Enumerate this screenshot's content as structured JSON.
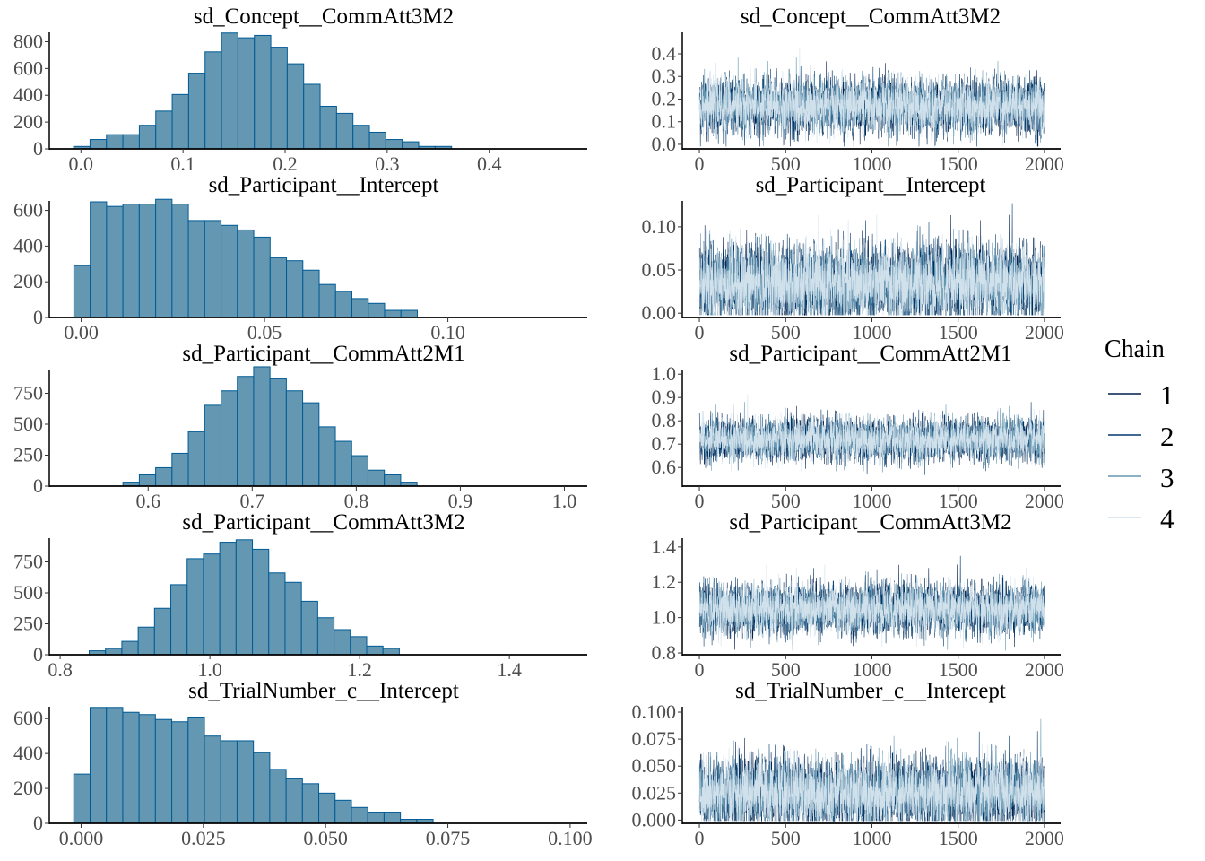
{
  "legend": {
    "title": "Chain",
    "items": [
      {
        "label": "1",
        "color": "#011f4b"
      },
      {
        "label": "2",
        "color": "#03396c"
      },
      {
        "label": "3",
        "color": "#6497b1"
      },
      {
        "label": "4",
        "color": "#d1e1ec"
      }
    ]
  },
  "colors": {
    "hist_fill": "#6497b1",
    "hist_border": "#005b96",
    "axis": "#000000",
    "tick_text": "#4d4d4d"
  },
  "chart_data": [
    {
      "type": "bar",
      "title": "sd_Concept__CommAtt3M2",
      "x_ticks": [
        "0.0",
        "0.1",
        "0.2",
        "0.3",
        "0.4"
      ],
      "x_tick_values": [
        0,
        0.1,
        0.2,
        0.3,
        0.4
      ],
      "y_ticks": [
        "0",
        "200",
        "400",
        "600",
        "800"
      ],
      "y_tick_values": [
        0,
        200,
        400,
        600,
        800
      ],
      "xlim": [
        -0.031,
        0.496
      ],
      "ylim": [
        0,
        870
      ],
      "bin_start": -0.0072,
      "bin_width": 0.0161,
      "counts": [
        18,
        70,
        106,
        106,
        176,
        282,
        406,
        565,
        724,
        865,
        829,
        847,
        759,
        635,
        482,
        318,
        265,
        176,
        124,
        70,
        53,
        18,
        18
      ]
    },
    {
      "type": "line",
      "title": "sd_Concept__CommAtt3M2",
      "x_ticks": [
        "0",
        "500",
        "1000",
        "1500",
        "2000"
      ],
      "x_tick_values": [
        0,
        500,
        1000,
        1500,
        2000
      ],
      "y_ticks": [
        "0.0",
        "0.1",
        "0.2",
        "0.3",
        "0.4"
      ],
      "y_tick_values": [
        0,
        0.1,
        0.2,
        0.3,
        0.4
      ],
      "xlim": [
        -99,
        2094
      ],
      "ylim": [
        -0.02,
        0.495
      ],
      "chains": 4,
      "iterations": 2000,
      "center": 0.17,
      "spread": 0.06
    },
    {
      "type": "bar",
      "title": "sd_Participant__Intercept",
      "x_ticks": [
        "0.00",
        "0.05",
        "0.10"
      ],
      "x_tick_values": [
        0,
        0.05,
        0.1
      ],
      "y_ticks": [
        "0",
        "200",
        "400",
        "600"
      ],
      "y_tick_values": [
        0,
        200,
        400,
        600
      ],
      "xlim": [
        -0.0087,
        0.138
      ],
      "ylim": [
        0,
        653
      ],
      "bin_start": -0.002,
      "bin_width": 0.00446,
      "counts": [
        291,
        648,
        622,
        635,
        635,
        662,
        635,
        543,
        543,
        516,
        490,
        450,
        335,
        318,
        265,
        185,
        146,
        106,
        79,
        40,
        40
      ]
    },
    {
      "type": "line",
      "title": "sd_Participant__Intercept",
      "x_ticks": [
        "0",
        "500",
        "1000",
        "1500",
        "2000"
      ],
      "x_tick_values": [
        0,
        500,
        1000,
        1500,
        2000
      ],
      "y_ticks": [
        "0.00",
        "0.05",
        "0.10"
      ],
      "y_tick_values": [
        0,
        0.05,
        0.1
      ],
      "xlim": [
        -99,
        2094
      ],
      "ylim": [
        -0.005,
        0.13
      ],
      "chains": 4,
      "iterations": 2000,
      "center": 0.035,
      "spread": 0.022
    },
    {
      "type": "bar",
      "title": "sd_Participant__CommAtt2M1",
      "x_ticks": [
        "0.6",
        "0.7",
        "0.8",
        "0.9",
        "1.0"
      ],
      "x_tick_values": [
        0.6,
        0.7,
        0.8,
        0.9,
        1.0
      ],
      "y_ticks": [
        "0",
        "250",
        "500",
        "750"
      ],
      "y_tick_values": [
        0,
        250,
        500,
        750
      ],
      "xlim": [
        0.505,
        1.022
      ],
      "ylim": [
        0,
        942
      ],
      "bin_start": 0.5758,
      "bin_width": 0.0157,
      "counts": [
        32,
        91,
        149,
        265,
        440,
        653,
        770,
        886,
        964,
        867,
        770,
        673,
        479,
        362,
        246,
        129,
        91,
        32
      ]
    },
    {
      "type": "line",
      "title": "sd_Participant__CommAtt2M1",
      "x_ticks": [
        "0",
        "500",
        "1000",
        "1500",
        "2000"
      ],
      "x_tick_values": [
        0,
        500,
        1000,
        1500,
        2000
      ],
      "y_ticks": [
        "0.6",
        "0.7",
        "0.8",
        "0.9",
        "1.0"
      ],
      "y_tick_values": [
        0.6,
        0.7,
        0.8,
        0.9,
        1.0
      ],
      "xlim": [
        -99,
        2094
      ],
      "ylim": [
        0.52,
        1.02
      ],
      "chains": 4,
      "iterations": 2000,
      "center": 0.72,
      "spread": 0.045
    },
    {
      "type": "bar",
      "title": "sd_Participant__CommAtt3M2",
      "x_ticks": [
        "0.8",
        "1.0",
        "1.2",
        "1.4"
      ],
      "x_tick_values": [
        0.8,
        1.0,
        1.2,
        1.4
      ],
      "y_ticks": [
        "0",
        "250",
        "500",
        "750"
      ],
      "y_tick_values": [
        0,
        250,
        500,
        750
      ],
      "xlim": [
        0.7855,
        1.504
      ],
      "ylim": [
        0,
        942
      ],
      "bin_start": 0.8388,
      "bin_width": 0.0218,
      "counts": [
        32,
        51,
        108,
        223,
        375,
        566,
        776,
        814,
        909,
        929,
        852,
        661,
        585,
        432,
        299,
        203,
        146,
        70,
        51
      ]
    },
    {
      "type": "line",
      "title": "sd_Participant__CommAtt3M2",
      "x_ticks": [
        "0",
        "500",
        "1000",
        "1500",
        "2000"
      ],
      "x_tick_values": [
        0,
        500,
        1000,
        1500,
        2000
      ],
      "y_ticks": [
        "0.8",
        "1.0",
        "1.2",
        "1.4"
      ],
      "y_tick_values": [
        0.8,
        1.0,
        1.2,
        1.4
      ],
      "xlim": [
        -99,
        2094
      ],
      "ylim": [
        0.79,
        1.45
      ],
      "chains": 4,
      "iterations": 2000,
      "center": 1.05,
      "spread": 0.07
    },
    {
      "type": "bar",
      "title": "sd_TrialNumber_c__Intercept",
      "x_ticks": [
        "0.000",
        "0.025",
        "0.050",
        "0.075",
        "0.100"
      ],
      "x_tick_values": [
        0,
        0.025,
        0.05,
        0.075,
        0.1
      ],
      "y_ticks": [
        "0",
        "200",
        "400",
        "600"
      ],
      "y_tick_values": [
        0,
        200,
        400,
        600
      ],
      "xlim": [
        -0.0065,
        0.1035
      ],
      "ylim": [
        0,
        668
      ],
      "bin_start": -0.0015,
      "bin_width": 0.00334,
      "counts": [
        282,
        664,
        664,
        636,
        623,
        595,
        582,
        609,
        500,
        473,
        473,
        405,
        309,
        255,
        227,
        173,
        132,
        91,
        64,
        64,
        23,
        23
      ]
    },
    {
      "type": "line",
      "title": "sd_TrialNumber_c__Intercept",
      "x_ticks": [
        "0",
        "500",
        "1000",
        "1500",
        "2000"
      ],
      "x_tick_values": [
        0,
        500,
        1000,
        1500,
        2000
      ],
      "y_ticks": [
        "0.000",
        "0.025",
        "0.050",
        "0.075",
        "0.100"
      ],
      "y_tick_values": [
        0,
        0.025,
        0.05,
        0.075,
        0.1
      ],
      "xlim": [
        -99,
        2094
      ],
      "ylim": [
        -0.003,
        0.105
      ],
      "chains": 4,
      "iterations": 2000,
      "center": 0.025,
      "spread": 0.016
    }
  ]
}
